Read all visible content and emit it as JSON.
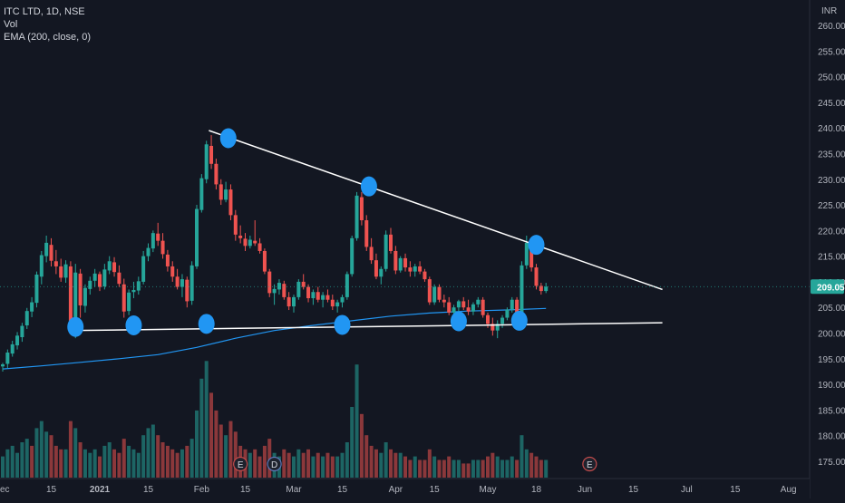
{
  "legend": {
    "symbol": "ITC LTD, 1D, NSE",
    "volume": "Vol",
    "ema": "EMA (200, close, 0)"
  },
  "currency": "INR",
  "colors": {
    "background": "#131722",
    "up": "#26a69a",
    "down": "#ef5350",
    "up_volume": "#26a69a",
    "down_volume": "#ef5350",
    "ema": "#2196f3",
    "trendline": "#ffffff",
    "pivot": "#2196f3",
    "price_tag": "#26a69a",
    "axis_text": "#b2b5be"
  },
  "chart_data": {
    "type": "candlestick",
    "title": "",
    "y_axis": {
      "range": [
        170,
        262
      ],
      "ticks": [
        175,
        180,
        185,
        190,
        195,
        200,
        205,
        210,
        215,
        220,
        225,
        230,
        235,
        240,
        245,
        250,
        255,
        260
      ],
      "tick_labels": [
        "175.00",
        "180.00",
        "185.00",
        "190.00",
        "195.00",
        "200.00",
        "205.00",
        "210.00",
        "215.00",
        "220.00",
        "225.00",
        "230.00",
        "235.00",
        "240.00",
        "245.00",
        "250.00",
        "255.00",
        "260.00"
      ],
      "last_price": 209.05,
      "last_price_label": "209.05"
    },
    "x_axis": {
      "tick_labels": [
        {
          "label": "ec",
          "index": 0
        },
        {
          "label": "15",
          "index": 10
        },
        {
          "label": "2021",
          "index": 20
        },
        {
          "label": "15",
          "index": 30
        },
        {
          "label": "Feb",
          "index": 41
        },
        {
          "label": "15",
          "index": 50
        },
        {
          "label": "Mar",
          "index": 60
        },
        {
          "label": "15",
          "index": 70
        },
        {
          "label": "Apr",
          "index": 81
        },
        {
          "label": "15",
          "index": 89
        },
        {
          "label": "May",
          "index": 100
        },
        {
          "label": "18",
          "index": 110
        },
        {
          "label": "Jun",
          "index": 120
        },
        {
          "label": "15",
          "index": 130
        },
        {
          "label": "Jul",
          "index": 141
        },
        {
          "label": "15",
          "index": 151
        },
        {
          "label": "Aug",
          "index": 162
        }
      ],
      "max_index": 170
    },
    "candles": [
      [
        193.5,
        194.2,
        192.5,
        193.9
      ],
      [
        194.0,
        196.8,
        193.2,
        196.2
      ],
      [
        196.0,
        198.5,
        195.4,
        197.8
      ],
      [
        197.6,
        200.2,
        196.8,
        199.5
      ],
      [
        199.2,
        202.0,
        198.3,
        201.4
      ],
      [
        201.5,
        204.9,
        200.8,
        204.3
      ],
      [
        204.2,
        207.0,
        203.1,
        206.0
      ],
      [
        205.9,
        212.0,
        205.0,
        211.4
      ],
      [
        211.0,
        216.0,
        209.5,
        215.2
      ],
      [
        215.0,
        219.0,
        213.8,
        217.6
      ],
      [
        217.2,
        218.5,
        213.0,
        214.1
      ],
      [
        214.0,
        216.2,
        211.5,
        213.0
      ],
      [
        213.0,
        214.5,
        210.0,
        210.8
      ],
      [
        210.8,
        214.2,
        209.8,
        213.4
      ],
      [
        213.0,
        214.0,
        201.0,
        202.4
      ],
      [
        202.6,
        213.5,
        199.0,
        211.8
      ],
      [
        211.6,
        212.5,
        203.0,
        205.4
      ],
      [
        205.3,
        209.5,
        204.0,
        208.8
      ],
      [
        208.6,
        211.0,
        207.5,
        210.2
      ],
      [
        210.2,
        212.5,
        209.0,
        211.6
      ],
      [
        211.5,
        212.0,
        208.2,
        209.0
      ],
      [
        209.1,
        213.5,
        208.5,
        212.4
      ],
      [
        212.2,
        215.0,
        211.5,
        214.0
      ],
      [
        213.8,
        214.8,
        211.0,
        211.9
      ],
      [
        211.8,
        213.2,
        209.0,
        209.6
      ],
      [
        209.5,
        210.6,
        203.0,
        204.2
      ],
      [
        204.3,
        208.5,
        203.5,
        207.9
      ],
      [
        208.0,
        210.0,
        206.8,
        208.4
      ],
      [
        208.3,
        211.0,
        207.5,
        210.1
      ],
      [
        210.0,
        216.0,
        209.5,
        215.0
      ],
      [
        215.0,
        217.5,
        214.0,
        216.6
      ],
      [
        216.5,
        220.0,
        215.8,
        219.5
      ],
      [
        219.4,
        221.5,
        217.0,
        218.0
      ],
      [
        218.0,
        219.5,
        214.5,
        215.4
      ],
      [
        215.3,
        216.2,
        212.0,
        213.0
      ],
      [
        213.0,
        214.0,
        210.0,
        211.0
      ],
      [
        211.0,
        212.5,
        208.5,
        209.0
      ],
      [
        209.0,
        211.5,
        207.0,
        210.5
      ],
      [
        210.4,
        211.0,
        205.0,
        206.2
      ],
      [
        206.3,
        214.0,
        205.5,
        213.2
      ],
      [
        213.0,
        225.0,
        212.5,
        224.2
      ],
      [
        224.0,
        231.0,
        223.5,
        230.2
      ],
      [
        230.0,
        237.5,
        229.2,
        236.8
      ],
      [
        236.5,
        238.6,
        232.0,
        233.0
      ],
      [
        233.0,
        234.0,
        228.0,
        229.0
      ],
      [
        229.0,
        230.0,
        225.0,
        226.0
      ],
      [
        226.0,
        229.5,
        225.5,
        228.0
      ],
      [
        228.0,
        229.0,
        222.0,
        223.0
      ],
      [
        223.0,
        224.0,
        218.0,
        219.2
      ],
      [
        219.0,
        221.0,
        217.5,
        218.5
      ],
      [
        218.4,
        219.5,
        216.0,
        217.0
      ],
      [
        217.0,
        219.0,
        216.5,
        218.2
      ],
      [
        218.0,
        222.0,
        217.0,
        217.5
      ],
      [
        217.5,
        218.5,
        215.5,
        216.0
      ],
      [
        216.0,
        216.5,
        211.5,
        212.0
      ],
      [
        212.0,
        212.5,
        207.0,
        207.8
      ],
      [
        207.8,
        209.5,
        205.5,
        208.6
      ],
      [
        208.5,
        210.5,
        207.5,
        209.8
      ],
      [
        209.6,
        210.2,
        206.5,
        207.0
      ],
      [
        207.0,
        208.0,
        204.5,
        205.2
      ],
      [
        205.2,
        207.5,
        204.0,
        207.0
      ],
      [
        207.0,
        210.5,
        206.5,
        210.0
      ],
      [
        210.0,
        211.5,
        208.5,
        209.0
      ],
      [
        209.0,
        209.5,
        206.0,
        206.8
      ],
      [
        206.8,
        208.5,
        205.5,
        208.0
      ],
      [
        208.0,
        209.0,
        206.0,
        206.5
      ],
      [
        206.5,
        208.0,
        205.0,
        207.4
      ],
      [
        207.4,
        208.5,
        206.0,
        206.5
      ],
      [
        206.5,
        207.5,
        204.5,
        205.2
      ],
      [
        205.2,
        206.5,
        204.0,
        206.0
      ],
      [
        206.0,
        207.5,
        205.0,
        207.0
      ],
      [
        207.0,
        212.0,
        206.5,
        211.5
      ],
      [
        211.5,
        219.0,
        211.0,
        218.5
      ],
      [
        218.5,
        227.5,
        218.0,
        226.8
      ],
      [
        226.5,
        227.5,
        221.0,
        222.0
      ],
      [
        222.0,
        223.0,
        216.0,
        216.8
      ],
      [
        216.8,
        218.5,
        213.5,
        214.2
      ],
      [
        214.2,
        215.5,
        210.5,
        211.0
      ],
      [
        211.0,
        213.0,
        209.5,
        212.5
      ],
      [
        212.5,
        220.0,
        212.0,
        219.2
      ],
      [
        219.2,
        220.5,
        215.5,
        216.0
      ],
      [
        216.0,
        217.0,
        211.5,
        212.2
      ],
      [
        212.2,
        215.0,
        211.8,
        214.6
      ],
      [
        214.6,
        215.5,
        212.0,
        212.8
      ],
      [
        212.8,
        214.0,
        211.0,
        212.0
      ],
      [
        212.0,
        213.5,
        211.0,
        213.0
      ],
      [
        213.0,
        214.0,
        211.5,
        212.0
      ],
      [
        212.0,
        212.5,
        210.0,
        210.5
      ],
      [
        210.5,
        211.0,
        205.5,
        206.0
      ],
      [
        206.0,
        209.5,
        205.5,
        209.0
      ],
      [
        209.0,
        209.5,
        206.0,
        206.5
      ],
      [
        206.5,
        207.5,
        205.0,
        206.0
      ],
      [
        206.0,
        207.0,
        203.5,
        204.0
      ],
      [
        204.0,
        205.5,
        202.5,
        205.0
      ],
      [
        205.0,
        206.5,
        204.0,
        206.2
      ],
      [
        206.2,
        207.0,
        204.5,
        205.0
      ],
      [
        205.0,
        206.5,
        203.5,
        204.2
      ],
      [
        204.2,
        206.0,
        203.5,
        205.6
      ],
      [
        205.6,
        207.0,
        205.0,
        206.5
      ],
      [
        206.5,
        207.0,
        203.0,
        203.5
      ],
      [
        203.5,
        204.0,
        201.0,
        201.8
      ],
      [
        201.8,
        203.0,
        199.5,
        200.5
      ],
      [
        200.5,
        202.5,
        199.0,
        201.8
      ],
      [
        201.8,
        203.5,
        201.0,
        203.0
      ],
      [
        203.0,
        205.0,
        202.5,
        204.6
      ],
      [
        204.6,
        207.0,
        204.0,
        206.5
      ],
      [
        206.5,
        207.0,
        202.5,
        203.5
      ],
      [
        203.5,
        214.0,
        203.0,
        213.2
      ],
      [
        213.2,
        219.0,
        212.5,
        217.6
      ],
      [
        217.6,
        218.0,
        212.0,
        212.8
      ],
      [
        212.8,
        213.5,
        208.5,
        209.2
      ],
      [
        209.2,
        209.8,
        207.5,
        208.2
      ],
      [
        208.2,
        209.8,
        207.8,
        209.05
      ]
    ],
    "volume": [
      [
        6,
        1
      ],
      [
        8,
        1
      ],
      [
        9,
        1
      ],
      [
        7,
        1
      ],
      [
        10,
        1
      ],
      [
        11,
        1
      ],
      [
        9,
        0
      ],
      [
        14,
        1
      ],
      [
        16,
        1
      ],
      [
        13,
        1
      ],
      [
        12,
        0
      ],
      [
        9,
        0
      ],
      [
        8,
        0
      ],
      [
        8,
        1
      ],
      [
        16,
        0
      ],
      [
        14,
        1
      ],
      [
        10,
        0
      ],
      [
        8,
        1
      ],
      [
        7,
        1
      ],
      [
        8,
        1
      ],
      [
        6,
        0
      ],
      [
        9,
        1
      ],
      [
        10,
        1
      ],
      [
        8,
        0
      ],
      [
        7,
        0
      ],
      [
        11,
        0
      ],
      [
        9,
        1
      ],
      [
        8,
        1
      ],
      [
        7,
        1
      ],
      [
        12,
        1
      ],
      [
        14,
        1
      ],
      [
        15,
        1
      ],
      [
        12,
        0
      ],
      [
        10,
        0
      ],
      [
        9,
        0
      ],
      [
        8,
        0
      ],
      [
        7,
        0
      ],
      [
        8,
        1
      ],
      [
        9,
        0
      ],
      [
        11,
        1
      ],
      [
        19,
        1
      ],
      [
        28,
        1
      ],
      [
        33,
        1
      ],
      [
        24,
        0
      ],
      [
        19,
        0
      ],
      [
        15,
        0
      ],
      [
        12,
        1
      ],
      [
        16,
        0
      ],
      [
        13,
        0
      ],
      [
        9,
        0
      ],
      [
        8,
        0
      ],
      [
        7,
        1
      ],
      [
        8,
        0
      ],
      [
        6,
        0
      ],
      [
        9,
        0
      ],
      [
        11,
        0
      ],
      [
        7,
        1
      ],
      [
        6,
        1
      ],
      [
        8,
        0
      ],
      [
        7,
        0
      ],
      [
        6,
        1
      ],
      [
        8,
        1
      ],
      [
        7,
        0
      ],
      [
        8,
        0
      ],
      [
        6,
        1
      ],
      [
        7,
        0
      ],
      [
        6,
        1
      ],
      [
        7,
        0
      ],
      [
        6,
        0
      ],
      [
        6,
        1
      ],
      [
        7,
        1
      ],
      [
        10,
        1
      ],
      [
        20,
        1
      ],
      [
        32,
        1
      ],
      [
        18,
        0
      ],
      [
        12,
        0
      ],
      [
        9,
        0
      ],
      [
        8,
        0
      ],
      [
        7,
        1
      ],
      [
        10,
        1
      ],
      [
        8,
        0
      ],
      [
        7,
        0
      ],
      [
        7,
        1
      ],
      [
        6,
        0
      ],
      [
        5,
        0
      ],
      [
        6,
        1
      ],
      [
        5,
        0
      ],
      [
        5,
        0
      ],
      [
        8,
        0
      ],
      [
        6,
        1
      ],
      [
        5,
        0
      ],
      [
        5,
        0
      ],
      [
        6,
        0
      ],
      [
        5,
        1
      ],
      [
        5,
        1
      ],
      [
        4,
        0
      ],
      [
        4,
        0
      ],
      [
        5,
        1
      ],
      [
        5,
        1
      ],
      [
        5,
        0
      ],
      [
        6,
        0
      ],
      [
        7,
        0
      ],
      [
        6,
        1
      ],
      [
        5,
        1
      ],
      [
        5,
        1
      ],
      [
        6,
        1
      ],
      [
        5,
        0
      ],
      [
        12,
        1
      ],
      [
        8,
        1
      ],
      [
        7,
        0
      ],
      [
        6,
        0
      ],
      [
        5,
        0
      ],
      [
        5,
        1
      ]
    ],
    "ema_series": [
      [
        0,
        193.0
      ],
      [
        8,
        193.6
      ],
      [
        16,
        194.3
      ],
      [
        24,
        195.0
      ],
      [
        32,
        195.8
      ],
      [
        40,
        197.2
      ],
      [
        48,
        199.0
      ],
      [
        56,
        200.5
      ],
      [
        64,
        201.5
      ],
      [
        72,
        202.4
      ],
      [
        80,
        203.3
      ],
      [
        88,
        203.9
      ],
      [
        96,
        204.3
      ],
      [
        104,
        204.5
      ],
      [
        112,
        204.8
      ]
    ],
    "trendlines": [
      {
        "from": [
          42.5,
          239.5
        ],
        "to": [
          136,
          208.5
        ]
      },
      {
        "from": [
          15,
          200.5
        ],
        "to": [
          136,
          202
        ]
      }
    ],
    "pivots": [
      [
        15,
        201.2
      ],
      [
        27,
        201.5
      ],
      [
        42,
        201.8
      ],
      [
        46.5,
        238.0
      ],
      [
        70,
        201.6
      ],
      [
        75.5,
        228.6
      ],
      [
        94,
        202.3
      ],
      [
        106.5,
        202.4
      ],
      [
        110,
        217.2
      ]
    ],
    "event_markers": [
      {
        "label": "E",
        "index": 49
      },
      {
        "label": "D",
        "index": 56
      },
      {
        "label": "E",
        "index": 121
      }
    ]
  }
}
